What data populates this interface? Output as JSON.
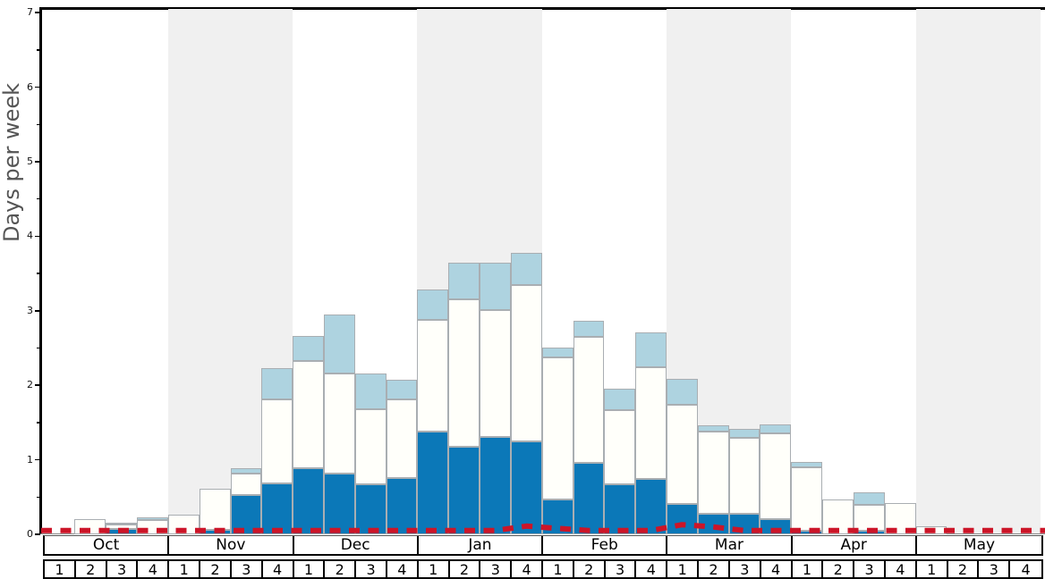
{
  "chart_data": {
    "type": "bar",
    "stacked": true,
    "title": "",
    "xlabel": "",
    "ylabel": "Days per week",
    "ylim": [
      0,
      7
    ],
    "y_major_ticks": [
      0,
      1,
      2,
      3,
      4,
      5,
      6,
      7
    ],
    "y_minor_tick_step": 0.5,
    "grid": "off",
    "legend": "none",
    "months": [
      "Oct",
      "Nov",
      "Dec",
      "Jan",
      "Feb",
      "Mar",
      "Apr",
      "May"
    ],
    "weeks_per_month": [
      "1",
      "2",
      "3",
      "4"
    ],
    "series": [
      {
        "name": "dark-blue-segment",
        "color": "#0b78b8",
        "values": [
          0,
          0,
          0.07,
          0,
          0,
          0.06,
          0.53,
          0.68,
          0.89,
          0.82,
          0.67,
          0.75,
          1.38,
          1.17,
          1.31,
          1.25,
          0.47,
          0.96,
          0.67,
          0.74,
          0.41,
          0.27,
          0.27,
          0.2,
          0.05,
          0,
          0.05,
          0,
          0,
          0,
          0,
          0
        ]
      },
      {
        "name": "white-segment",
        "color": "#fffffa",
        "values": [
          0,
          0.2,
          0.06,
          0.19,
          0.26,
          0.55,
          0.28,
          1.13,
          1.44,
          1.34,
          1.01,
          1.06,
          1.5,
          1.98,
          1.7,
          2.1,
          1.91,
          1.69,
          1.0,
          1.5,
          1.33,
          1.11,
          1.02,
          1.15,
          0.85,
          0.47,
          0.35,
          0.42,
          0.11,
          0,
          0,
          0
        ]
      },
      {
        "name": "light-blue-segment",
        "color": "#aed3e0",
        "values": [
          0,
          0,
          0.03,
          0.04,
          0,
          0,
          0.08,
          0.42,
          0.33,
          0.79,
          0.48,
          0.26,
          0.4,
          0.49,
          0.64,
          0.43,
          0.13,
          0.22,
          0.28,
          0.47,
          0.35,
          0.08,
          0.12,
          0.12,
          0.07,
          0,
          0.16,
          0,
          0,
          0,
          0,
          0
        ]
      }
    ],
    "overlay_line": {
      "name": "red-dashed-line",
      "color": "#cc1528",
      "style": "dashed",
      "values": [
        0.05,
        0.05,
        0.05,
        0.05,
        0.05,
        0.05,
        0.05,
        0.05,
        0.05,
        0.05,
        0.05,
        0.05,
        0.05,
        0.05,
        0.05,
        0.11,
        0.08,
        0.05,
        0.05,
        0.05,
        0.13,
        0.1,
        0.05,
        0.05,
        0.05,
        0.05,
        0.05,
        0.05,
        0.05,
        0.05,
        0.05,
        0.05
      ]
    },
    "layout_hints": {
      "banded_months": [
        "Nov",
        "Jan",
        "Mar",
        "May"
      ],
      "band_color": "#f0f0f0",
      "axis_color": "#000000",
      "ylabel_color": "#555555",
      "legend_position": "none"
    }
  }
}
